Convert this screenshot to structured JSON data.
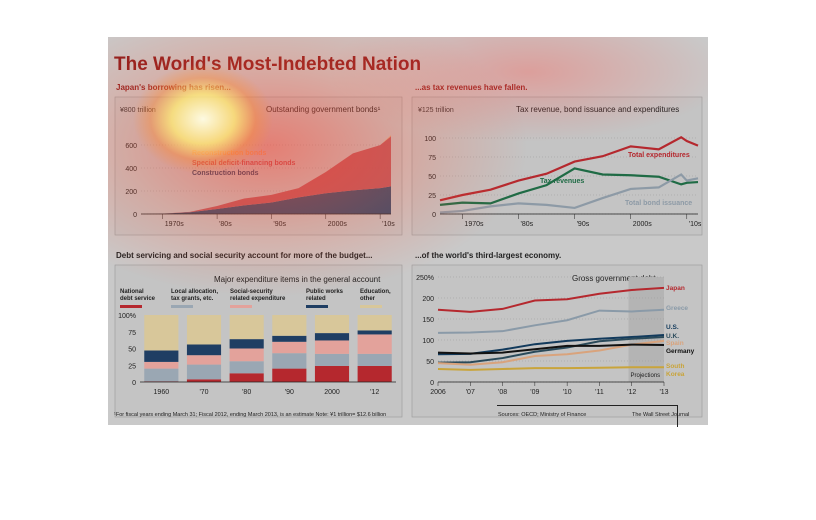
{
  "title": "The World's Most-Indebted Nation",
  "footnote": "¹For fiscal years ending March 31; Fiscal 2012, ending March 2013, is an estimate   Note: ¥1 trillion= $12.6 billion",
  "sources": "Sources: OECD; Ministry of Finance",
  "publisher": "The Wall Street Journal",
  "colors": {
    "japan": "#b5282e",
    "greece": "#8a9aa8",
    "us": "#123a5c",
    "uk": "#2a4a5a",
    "spain": "#d9a37c",
    "germany": "#111111",
    "south_korea": "#c9a43a",
    "tax": "#1f6b45",
    "bond": "#8d9aa6",
    "construction": "#1f3e63",
    "deficit": "#b84a52",
    "reconstruction": "#e6a56a"
  },
  "chart_data": [
    {
      "type": "area",
      "subtitle": "Japan's borrowing has risen...",
      "title": "Outstanding government bonds¹",
      "unit_label": "¥800 trillion",
      "x_ticks": [
        "1970s",
        "'80s",
        "'90s",
        "2000s",
        "'10s"
      ],
      "y_ticks": [
        "600",
        "400",
        "200",
        "0"
      ],
      "ylim": [
        0,
        800
      ],
      "x": [
        1966,
        1970,
        1975,
        1980,
        1985,
        1990,
        1995,
        2000,
        2005,
        2010,
        2012
      ],
      "series": [
        {
          "name": "Construction bonds",
          "values": [
            0,
            3,
            15,
            43,
            75,
            100,
            145,
            180,
            205,
            225,
            240
          ]
        },
        {
          "name": "Special deficit-financing bonds",
          "values": [
            0,
            0,
            4,
            27,
            60,
            66,
            80,
            185,
            322,
            374,
            435
          ]
        },
        {
          "name": "Reconstruction bonds",
          "values": [
            0,
            0,
            0,
            0,
            0,
            0,
            0,
            0,
            0,
            0,
            10
          ]
        }
      ]
    },
    {
      "type": "line",
      "subtitle": "...as tax revenues have fallen.",
      "title": "Tax revenue, bond issuance and expenditures",
      "unit_label": "¥125 trillion",
      "x_ticks": [
        "1970s",
        "'80s",
        "'90s",
        "2000s",
        "'10s"
      ],
      "y_ticks": [
        "100",
        "75",
        "50",
        "25",
        "0"
      ],
      "ylim": [
        0,
        125
      ],
      "x": [
        1966,
        1970,
        1975,
        1980,
        1985,
        1990,
        1995,
        2000,
        2005,
        2009,
        2010,
        2012
      ],
      "series": [
        {
          "name": "Total expenditures",
          "values": [
            18,
            25,
            32,
            44,
            53,
            69,
            76,
            89,
            85,
            101,
            96,
            90
          ]
        },
        {
          "name": "Tax revenues",
          "values": [
            12,
            15,
            14,
            27,
            38,
            60,
            52,
            51,
            49,
            39,
            41,
            42
          ]
        },
        {
          "name": "Total bond issuance",
          "values": [
            2,
            4,
            10,
            14,
            12,
            8,
            21,
            33,
            35,
            52,
            44,
            47
          ]
        }
      ]
    },
    {
      "type": "bar",
      "subtitle": "Debt servicing and social security account for more of the budget...",
      "title": "Major expenditure items in the general account",
      "categories": [
        "1960",
        "'70",
        "'80",
        "'90",
        "2000",
        "'12"
      ],
      "y_ticks": [
        "100%",
        "75",
        "50",
        "25",
        "0"
      ],
      "ylim": [
        0,
        100
      ],
      "series": [
        {
          "name": "National debt service",
          "values": [
            1,
            4,
            13,
            20,
            24,
            24
          ]
        },
        {
          "name": "Local allocation, tax grants, etc.",
          "values": [
            19,
            22,
            18,
            23,
            18,
            18
          ]
        },
        {
          "name": "Social-security related expenditure",
          "values": [
            10,
            14,
            19,
            17,
            20,
            29
          ]
        },
        {
          "name": "Public works related",
          "values": [
            17,
            16,
            14,
            9,
            11,
            6
          ]
        },
        {
          "name": "Education, other",
          "values": [
            53,
            44,
            36,
            31,
            27,
            23
          ]
        }
      ]
    },
    {
      "type": "line",
      "subtitle": "...of the world's third-largest economy.",
      "title": "Gross government debt",
      "x": [
        "2006",
        "'07",
        "'08",
        "'09",
        "'10",
        "'11",
        "'12",
        "'13"
      ],
      "y_ticks": [
        "250%",
        "200",
        "150",
        "100",
        "50",
        "0"
      ],
      "ylim": [
        0,
        250
      ],
      "annotation": "Projections",
      "series": [
        {
          "name": "Japan",
          "values": [
            172,
            167,
            174,
            194,
            197,
            210,
            219,
            224
          ]
        },
        {
          "name": "Greece",
          "values": [
            117,
            118,
            121,
            135,
            147,
            170,
            168,
            172
          ]
        },
        {
          "name": "U.S.",
          "values": [
            66,
            67,
            77,
            90,
            98,
            103,
            107,
            112
          ]
        },
        {
          "name": "U.K.",
          "values": [
            46,
            47,
            57,
            72,
            82,
            97,
            103,
            107
          ]
        },
        {
          "name": "Spain",
          "values": [
            45,
            41,
            47,
            62,
            66,
            75,
            89,
            98
          ]
        },
        {
          "name": "Germany",
          "values": [
            70,
            68,
            70,
            78,
            86,
            86,
            89,
            88
          ]
        },
        {
          "name": "South Korea",
          "values": [
            31,
            29,
            31,
            33,
            33,
            34,
            35,
            35
          ]
        }
      ]
    }
  ]
}
